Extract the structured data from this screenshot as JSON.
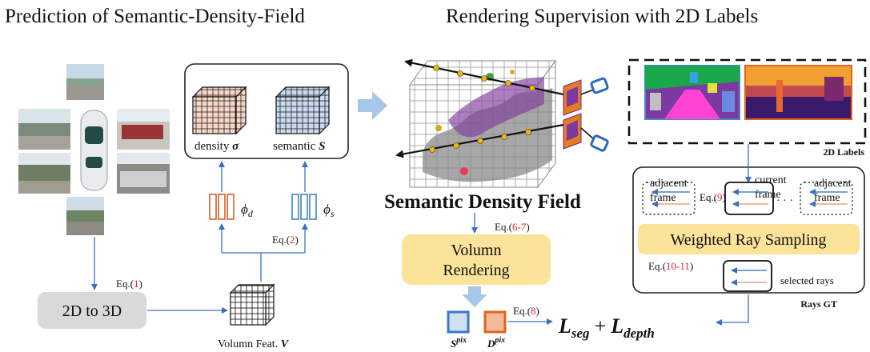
{
  "left_title": "Prediction of  Semantic-Density-Field",
  "right_title": "Rendering Supervision with 2D Labels",
  "density_label": "density",
  "density_symbol": "σ",
  "semantic_label": "semantic",
  "semantic_symbol": "S",
  "phi_d": "ϕ",
  "phi_d_sub": "d",
  "phi_s": "ϕ",
  "phi_s_sub": "s",
  "eq_prefix": "Eq.(",
  "eq_suffix": ")",
  "eq1_num": "1",
  "eq2_num": "2",
  "eq67_num": "6-7",
  "eq8_num": "8",
  "eq9_num": "9",
  "eq1011_num": "10-11",
  "to3d_label": "2D to 3D",
  "volfeat_label": "Volumn Feat.",
  "volfeat_symbol": "V",
  "sdf_title": "Semantic Density Field",
  "render_line1": "Volumn",
  "render_line2": "Rendering",
  "spix": "S",
  "spix_sup": "pix",
  "dpix": "D",
  "dpix_sup": "pix",
  "loss_seg": "L",
  "loss_seg_sub": "seg",
  "loss_plus": "+",
  "loss_depth": "L",
  "loss_depth_sub": "depth",
  "labels_2d": "2D Labels",
  "adjacent_frame_left_1": "adjacent",
  "adjacent_frame_left_2": "frame",
  "current_frame_1": "current",
  "current_frame_2": "frame",
  "adjacent_frame_right_1": "adjacent",
  "adjacent_frame_right_2": "frame",
  "ellipsis": "· · ·",
  "weighted_ray": "Weighted Ray Sampling",
  "selected_rays": "selected rays",
  "rays_gt": "Rays GT",
  "colors": {
    "arrow_blue": "#3a6fc4",
    "big_arrow": "#a6c7e8",
    "density_cube": "#f6d5c4",
    "semantic_cube": "#c9daef",
    "phi_d_stroke": "#d0581a",
    "phi_s_stroke": "#3a78c4",
    "yellow_box": "#fbe39a",
    "gray_box": "#d9d9d9",
    "spix_fill": "#cfe0f3",
    "dpix_fill": "#f4b89a"
  }
}
